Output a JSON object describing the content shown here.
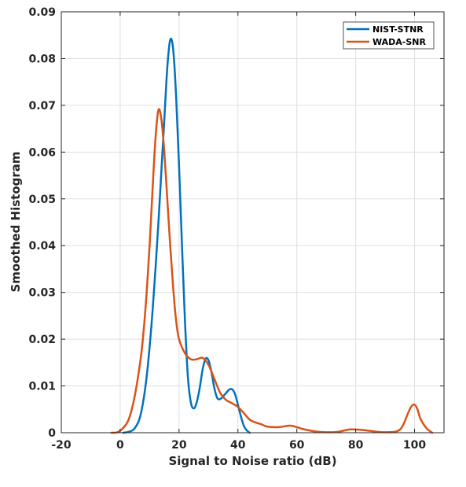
{
  "chart_data": {
    "type": "line",
    "xlabel": "Signal to Noise ratio (dB)",
    "ylabel": "Smoothed Histogram",
    "xlim": [
      -20,
      110
    ],
    "ylim": [
      0,
      0.09
    ],
    "xticks": [
      -20,
      0,
      20,
      40,
      60,
      80,
      100
    ],
    "xtick_labels": [
      "-20",
      "0",
      "20",
      "40",
      "60",
      "80",
      "100"
    ],
    "yticks": [
      0,
      0.01,
      0.02,
      0.03,
      0.04,
      0.05,
      0.06,
      0.07,
      0.08,
      0.09
    ],
    "ytick_labels": [
      "0",
      "0.01",
      "0.02",
      "0.03",
      "0.04",
      "0.05",
      "0.06",
      "0.07",
      "0.08",
      "0.09"
    ],
    "grid": true,
    "legend_position": "top-right",
    "series": [
      {
        "name": "NIST-STNR",
        "color": "#0072bd",
        "points": [
          [
            1,
            0
          ],
          [
            3,
            0.0002
          ],
          [
            5,
            0.001
          ],
          [
            7,
            0.004
          ],
          [
            9,
            0.012
          ],
          [
            11,
            0.026
          ],
          [
            13,
            0.045
          ],
          [
            14,
            0.056
          ],
          [
            15,
            0.067
          ],
          [
            16,
            0.078
          ],
          [
            17,
            0.084
          ],
          [
            18,
            0.082
          ],
          [
            19,
            0.072
          ],
          [
            20,
            0.057
          ],
          [
            21,
            0.04
          ],
          [
            22,
            0.024
          ],
          [
            23,
            0.012
          ],
          [
            24,
            0.0065
          ],
          [
            25,
            0.0052
          ],
          [
            26,
            0.0065
          ],
          [
            27,
            0.0095
          ],
          [
            28,
            0.0135
          ],
          [
            29,
            0.0158
          ],
          [
            30,
            0.0155
          ],
          [
            31,
            0.013
          ],
          [
            32,
            0.0095
          ],
          [
            33,
            0.0074
          ],
          [
            34,
            0.0072
          ],
          [
            35,
            0.0078
          ],
          [
            36,
            0.0085
          ],
          [
            37,
            0.0092
          ],
          [
            38,
            0.0093
          ],
          [
            39,
            0.0083
          ],
          [
            40,
            0.006
          ],
          [
            41,
            0.0035
          ],
          [
            42,
            0.0015
          ],
          [
            43,
            0.0005
          ],
          [
            44,
            0
          ]
        ]
      },
      {
        "name": "WADA-SNR",
        "color": "#d95319",
        "points": [
          [
            -3,
            0
          ],
          [
            -1,
            0.0001
          ],
          [
            1,
            0.001
          ],
          [
            3,
            0.003
          ],
          [
            5,
            0.008
          ],
          [
            7,
            0.016
          ],
          [
            8,
            0.022
          ],
          [
            9,
            0.03
          ],
          [
            10,
            0.04
          ],
          [
            11,
            0.052
          ],
          [
            12,
            0.063
          ],
          [
            13,
            0.069
          ],
          [
            14,
            0.067
          ],
          [
            15,
            0.06
          ],
          [
            16,
            0.05
          ],
          [
            17,
            0.04
          ],
          [
            18,
            0.031
          ],
          [
            19,
            0.024
          ],
          [
            20,
            0.02
          ],
          [
            22,
            0.017
          ],
          [
            24,
            0.0157
          ],
          [
            26,
            0.0157
          ],
          [
            28,
            0.016
          ],
          [
            30,
            0.0145
          ],
          [
            32,
            0.0115
          ],
          [
            34,
            0.0085
          ],
          [
            36,
            0.007
          ],
          [
            38,
            0.0063
          ],
          [
            40,
            0.0055
          ],
          [
            42,
            0.0042
          ],
          [
            44,
            0.0028
          ],
          [
            46,
            0.0022
          ],
          [
            48,
            0.0018
          ],
          [
            50,
            0.0013
          ],
          [
            54,
            0.0012
          ],
          [
            58,
            0.0015
          ],
          [
            62,
            0.0008
          ],
          [
            66,
            0.0003
          ],
          [
            70,
            0.0001
          ],
          [
            74,
            0.0002
          ],
          [
            78,
            0.0007
          ],
          [
            82,
            0.0006
          ],
          [
            86,
            0.0003
          ],
          [
            90,
            0.0001
          ],
          [
            94,
            0.0003
          ],
          [
            96,
            0.0015
          ],
          [
            98,
            0.0045
          ],
          [
            99,
            0.0057
          ],
          [
            100,
            0.006
          ],
          [
            101,
            0.005
          ],
          [
            102,
            0.003
          ],
          [
            104,
            0.001
          ],
          [
            106,
            0
          ]
        ]
      }
    ]
  }
}
